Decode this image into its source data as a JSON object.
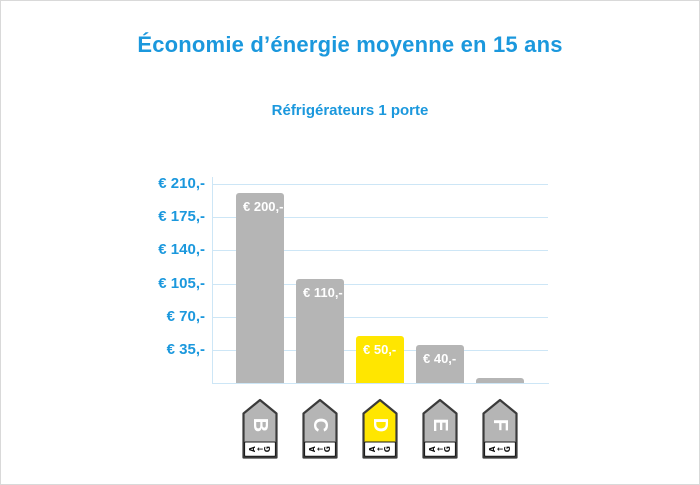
{
  "title": "Économie d’énergie moyenne en 15 ans",
  "subtitle": "Réfrigérateurs 1 porte",
  "colors": {
    "accent_blue": "#1b98dd",
    "grid_blue": "#cde6f6",
    "bar_gray": "#b5b5b5",
    "highlight_yellow": "#ffe600",
    "tag_outline": "#3b3b3b",
    "tag_box_border": "#1a1a1a",
    "tag_letter": "#ffffff",
    "tag_scale_text": "#111111",
    "value_label": "#ffffff",
    "page_border": "#d9d9d9",
    "background": "#ffffff"
  },
  "chart_data": {
    "type": "bar",
    "title": "Économie d’énergie moyenne en 15 ans",
    "subtitle": "Réfrigérateurs 1 porte",
    "categories": [
      "B",
      "C",
      "D",
      "E",
      "F"
    ],
    "values": [
      200,
      110,
      50,
      40,
      5
    ],
    "bar_labels": [
      "€ 200,-",
      "€ 110,-",
      "€ 50,-",
      "€ 40,-",
      ""
    ],
    "bar_colors": [
      "#b5b5b5",
      "#b5b5b5",
      "#ffe600",
      "#b5b5b5",
      "#b5b5b5"
    ],
    "highlight_category": "D",
    "xlabel": "",
    "ylabel": "",
    "y_ticks": [
      {
        "label": "€ 210,-",
        "value": 210
      },
      {
        "label": "€ 175,-",
        "value": 175
      },
      {
        "label": "€ 140,-",
        "value": 140
      },
      {
        "label": "€ 105,-",
        "value": 105
      },
      {
        "label": "€ 70,-",
        "value": 70
      },
      {
        "label": "€ 35,-",
        "value": 35
      }
    ],
    "ylim": [
      0,
      220
    ],
    "grid": true,
    "legend": false,
    "x_axis_style": "eu-energy-class-tags",
    "tag_scale_text": {
      "left": "A",
      "arrow": "←",
      "right": "G"
    }
  }
}
